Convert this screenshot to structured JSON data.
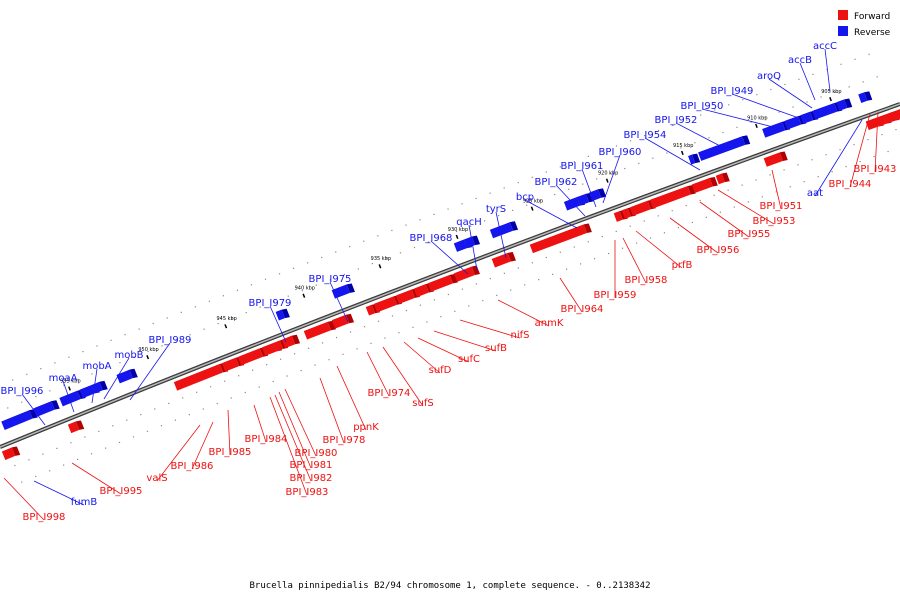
{
  "caption": "Brucella pinnipedialis B2/94 chromosome 1, complete sequence. - 0..2138342",
  "legend": [
    {
      "label": "Forward",
      "color": "#ee1111"
    },
    {
      "label": "Reverse",
      "color": "#1515ee"
    }
  ],
  "colors": {
    "forward": "#ee1111",
    "forward_dark": "#b00000",
    "reverse": "#1515ee",
    "reverse_dark": "#0000a8",
    "backbone": "#7a7a7a"
  },
  "ticks": [
    "955 kbp",
    "950 kbp",
    "945 kbp",
    "940 kbp",
    "935 kbp",
    "930 kbp",
    "925 kbp",
    "920 kbp",
    "915 kbp",
    "910 kbp",
    "905 kbp"
  ],
  "reverse_labels": [
    "BPI_I996",
    "moaA",
    "mobA",
    "mobB",
    "BPI_I989",
    "BPI_I979",
    "BPI_I975",
    "BPI_I968",
    "qacH",
    "tyrS",
    "bcp",
    "BPI_I962",
    "BPI_I961",
    "BPI_I960",
    "BPI_I954",
    "BPI_I952",
    "BPI_I950",
    "BPI_I949",
    "aroQ",
    "accB",
    "accC",
    "aat",
    "fumB"
  ],
  "forward_labels": [
    "BPI_I998",
    "BPI_I995",
    "valS",
    "BPI_I986",
    "BPI_I985",
    "BPI_I984",
    "BPI_I983",
    "BPI_I982",
    "BPI_I981",
    "BPI_I980",
    "BPI_I978",
    "ppnK",
    "BPI_I974",
    "sufS",
    "sufD",
    "sufC",
    "sufB",
    "nifS",
    "anmK",
    "BPI_I964",
    "BPI_I959",
    "BPI_I958",
    "prfB",
    "BPI_I956",
    "BPI_I955",
    "BPI_I953",
    "BPI_I951",
    "BPI_I944",
    "BPI_I943"
  ]
}
